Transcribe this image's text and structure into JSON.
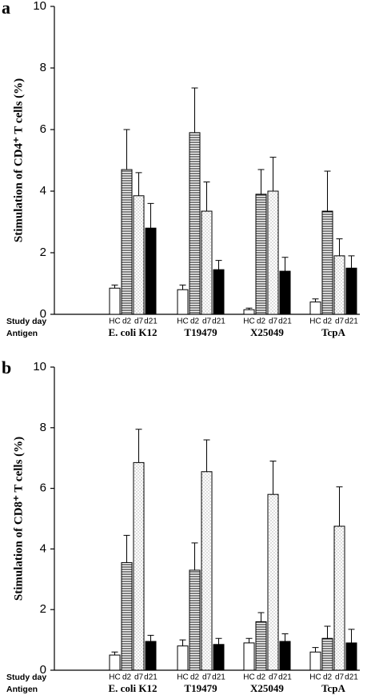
{
  "chart_data": [
    {
      "type": "bar",
      "panel": "a",
      "ylabel": "Stimulation of CD4⁺ T cells (%)",
      "row_labels": [
        "Study day",
        "Antigen"
      ],
      "categories": [
        "E. coli K12",
        "T19479",
        "X25049",
        "TcpA"
      ],
      "ylim": [
        0,
        10
      ],
      "yticks": [
        0,
        2,
        4,
        6,
        8,
        10
      ],
      "series": [
        {
          "name": "HC",
          "fill": "white",
          "values": [
            0.85,
            0.8,
            0.15,
            0.4
          ],
          "errors": [
            0.1,
            0.15,
            0.05,
            0.1
          ]
        },
        {
          "name": "d2",
          "fill": "horizontal-lines",
          "values": [
            4.7,
            5.9,
            3.9,
            3.35
          ],
          "errors": [
            1.3,
            1.45,
            0.8,
            1.3
          ]
        },
        {
          "name": "d7",
          "fill": "dots",
          "values": [
            3.85,
            3.35,
            4.0,
            1.9
          ],
          "errors": [
            0.75,
            0.95,
            1.1,
            0.55
          ]
        },
        {
          "name": "d21",
          "fill": "black",
          "values": [
            2.8,
            1.45,
            1.4,
            1.5
          ],
          "errors": [
            0.8,
            0.3,
            0.45,
            0.4
          ]
        }
      ]
    },
    {
      "type": "bar",
      "panel": "b",
      "ylabel": "Stimulation of CD8⁺ T cells (%)",
      "row_labels": [
        "Study day",
        "Antigen"
      ],
      "categories": [
        "E. coli K12",
        "T19479",
        "X25049",
        "TcpA"
      ],
      "ylim": [
        0,
        10
      ],
      "yticks": [
        0,
        2,
        4,
        6,
        8,
        10
      ],
      "series": [
        {
          "name": "HC",
          "fill": "white",
          "values": [
            0.5,
            0.8,
            0.9,
            0.6
          ],
          "errors": [
            0.1,
            0.2,
            0.15,
            0.15
          ]
        },
        {
          "name": "d2",
          "fill": "horizontal-lines",
          "values": [
            3.55,
            3.3,
            1.6,
            1.05
          ],
          "errors": [
            0.9,
            0.9,
            0.3,
            0.4
          ]
        },
        {
          "name": "d7",
          "fill": "dots",
          "values": [
            6.85,
            6.55,
            5.8,
            4.75
          ],
          "errors": [
            1.1,
            1.05,
            1.1,
            1.3
          ]
        },
        {
          "name": "d21",
          "fill": "black",
          "values": [
            0.95,
            0.85,
            0.95,
            0.9
          ],
          "errors": [
            0.2,
            0.2,
            0.25,
            0.45
          ]
        }
      ]
    }
  ]
}
